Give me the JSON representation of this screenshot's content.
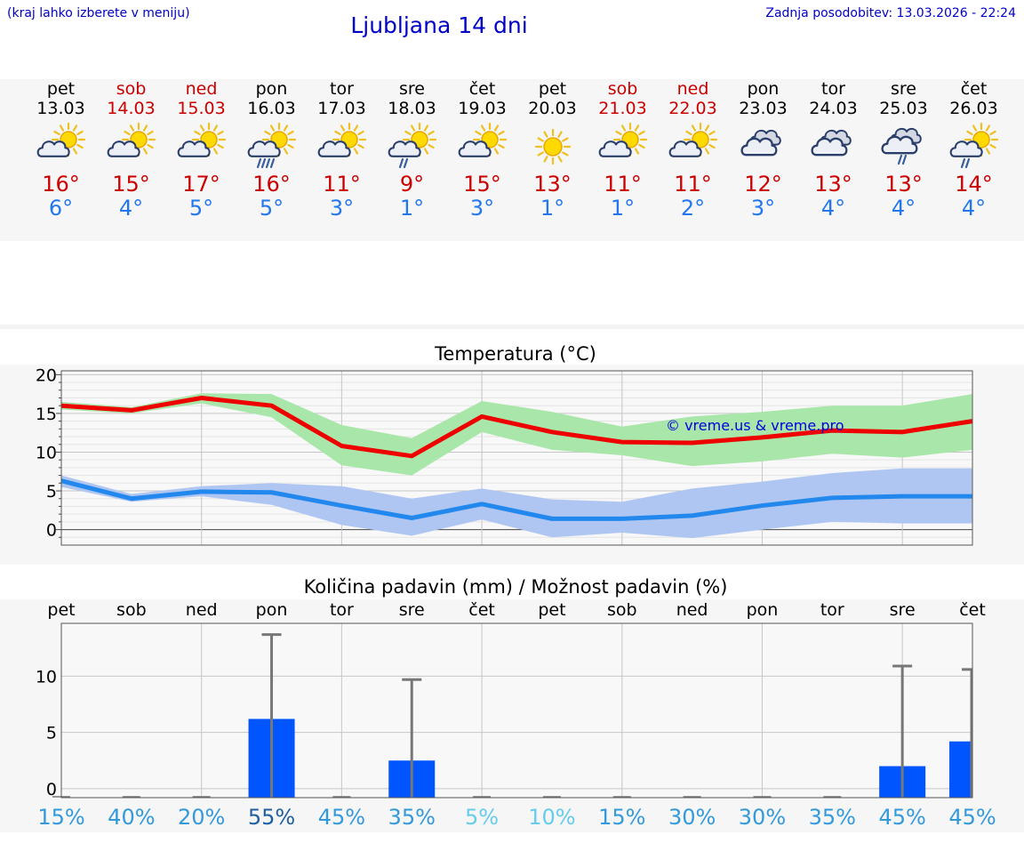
{
  "header": {
    "hint": "(kraj lahko izberete v meniju)",
    "title": "Ljubljana 14 dni",
    "updated": "Zadnja posodobitev: 13.03.2026 - 22:24"
  },
  "days": [
    {
      "name": "pet",
      "date": "13.03",
      "weekend": false,
      "icon": "partly-cloudy-icon",
      "tmax": "16°",
      "tmin": "6°"
    },
    {
      "name": "sob",
      "date": "14.03",
      "weekend": true,
      "icon": "partly-cloudy-icon",
      "tmax": "15°",
      "tmin": "4°"
    },
    {
      "name": "ned",
      "date": "15.03",
      "weekend": true,
      "icon": "partly-cloudy-icon",
      "tmax": "17°",
      "tmin": "5°"
    },
    {
      "name": "pon",
      "date": "16.03",
      "weekend": false,
      "icon": "sun-rain-heavy-icon",
      "tmax": "16°",
      "tmin": "5°"
    },
    {
      "name": "tor",
      "date": "17.03",
      "weekend": false,
      "icon": "partly-cloudy-icon",
      "tmax": "11°",
      "tmin": "3°"
    },
    {
      "name": "sre",
      "date": "18.03",
      "weekend": false,
      "icon": "sun-rain-light-icon",
      "tmax": "9°",
      "tmin": "1°"
    },
    {
      "name": "čet",
      "date": "19.03",
      "weekend": false,
      "icon": "partly-cloudy-icon",
      "tmax": "15°",
      "tmin": "3°"
    },
    {
      "name": "pet",
      "date": "20.03",
      "weekend": false,
      "icon": "sun-icon",
      "tmax": "13°",
      "tmin": "1°"
    },
    {
      "name": "sob",
      "date": "21.03",
      "weekend": true,
      "icon": "partly-cloudy-icon",
      "tmax": "11°",
      "tmin": "1°"
    },
    {
      "name": "ned",
      "date": "22.03",
      "weekend": true,
      "icon": "partly-cloudy-icon",
      "tmax": "11°",
      "tmin": "2°"
    },
    {
      "name": "pon",
      "date": "23.03",
      "weekend": false,
      "icon": "cloudy-icon",
      "tmax": "12°",
      "tmin": "3°"
    },
    {
      "name": "tor",
      "date": "24.03",
      "weekend": false,
      "icon": "cloudy-icon",
      "tmax": "13°",
      "tmin": "4°"
    },
    {
      "name": "sre",
      "date": "25.03",
      "weekend": false,
      "icon": "cloud-rain-icon",
      "tmax": "13°",
      "tmin": "4°"
    },
    {
      "name": "čet",
      "date": "26.03",
      "weekend": false,
      "icon": "sun-rain-light-icon",
      "tmax": "14°",
      "tmin": "4°"
    }
  ],
  "chart_data": [
    {
      "type": "line",
      "title": "Temperatura (°C)",
      "ylim": [
        -2,
        20.5
      ],
      "yticks": [
        0,
        5,
        10,
        15,
        20
      ],
      "grid": true,
      "watermark": "© vreme.us & vreme.pro",
      "x": [
        0,
        1,
        2,
        3,
        4,
        5,
        6,
        7,
        8,
        9,
        10,
        11,
        12,
        13
      ],
      "series": [
        {
          "name": "max",
          "color": "#ee0000",
          "values": [
            16.0,
            15.4,
            17.0,
            16.0,
            10.8,
            9.5,
            14.6,
            12.6,
            11.3,
            11.2,
            11.9,
            12.8,
            12.6,
            14.0
          ],
          "band_low": [
            15.5,
            15.0,
            16.3,
            14.5,
            8.3,
            7.0,
            12.6,
            10.3,
            9.6,
            8.2,
            8.8,
            9.8,
            9.3,
            10.3
          ],
          "band_high": [
            16.5,
            15.8,
            17.6,
            17.5,
            13.5,
            11.8,
            16.6,
            15.2,
            13.3,
            14.6,
            15.2,
            16.0,
            16.0,
            17.5
          ],
          "band_color": "#a9e6a9"
        },
        {
          "name": "min",
          "color": "#2288ee",
          "values": [
            6.3,
            4.0,
            4.9,
            4.8,
            3.1,
            1.5,
            3.3,
            1.4,
            1.4,
            1.8,
            3.1,
            4.1,
            4.3,
            4.3
          ],
          "band_low": [
            5.5,
            3.6,
            4.3,
            3.2,
            0.6,
            -0.8,
            1.3,
            -1.0,
            -0.4,
            -1.1,
            0.0,
            1.0,
            0.8,
            0.8
          ],
          "band_high": [
            7.0,
            4.6,
            5.6,
            6.0,
            5.6,
            4.0,
            5.3,
            3.9,
            3.6,
            5.3,
            6.2,
            7.3,
            7.9,
            7.9
          ],
          "band_color": "#b0c6f2"
        }
      ]
    },
    {
      "type": "bar",
      "title": "Količina padavin (mm) / Možnost padavin (%)",
      "categories": [
        "pet",
        "sob",
        "ned",
        "pon",
        "tor",
        "sre",
        "čet",
        "pet",
        "sob",
        "ned",
        "pon",
        "tor",
        "sre",
        "čet"
      ],
      "values": [
        0,
        0,
        0,
        6.2,
        0,
        2.5,
        0,
        0,
        0,
        0,
        0,
        0,
        2.0,
        4.2
      ],
      "error_max": [
        0,
        0,
        0,
        13.7,
        0,
        9.7,
        0,
        0,
        0,
        0,
        0,
        0,
        10.9,
        10.6
      ],
      "ylim": [
        -0.8,
        14.7
      ],
      "yticks": [
        0,
        5,
        10
      ],
      "bar_color": "#0055ff",
      "probability": [
        "15%",
        "40%",
        "20%",
        "55%",
        "45%",
        "35%",
        "5%",
        "10%",
        "15%",
        "30%",
        "30%",
        "35%",
        "45%",
        "45%"
      ],
      "probability_colors": [
        "#3399dd",
        "#3399dd",
        "#3399dd",
        "#1f5fa0",
        "#3399dd",
        "#3399dd",
        "#66ccee",
        "#66ccee",
        "#3399dd",
        "#3399dd",
        "#3399dd",
        "#3399dd",
        "#3399dd",
        "#3399dd"
      ]
    }
  ]
}
